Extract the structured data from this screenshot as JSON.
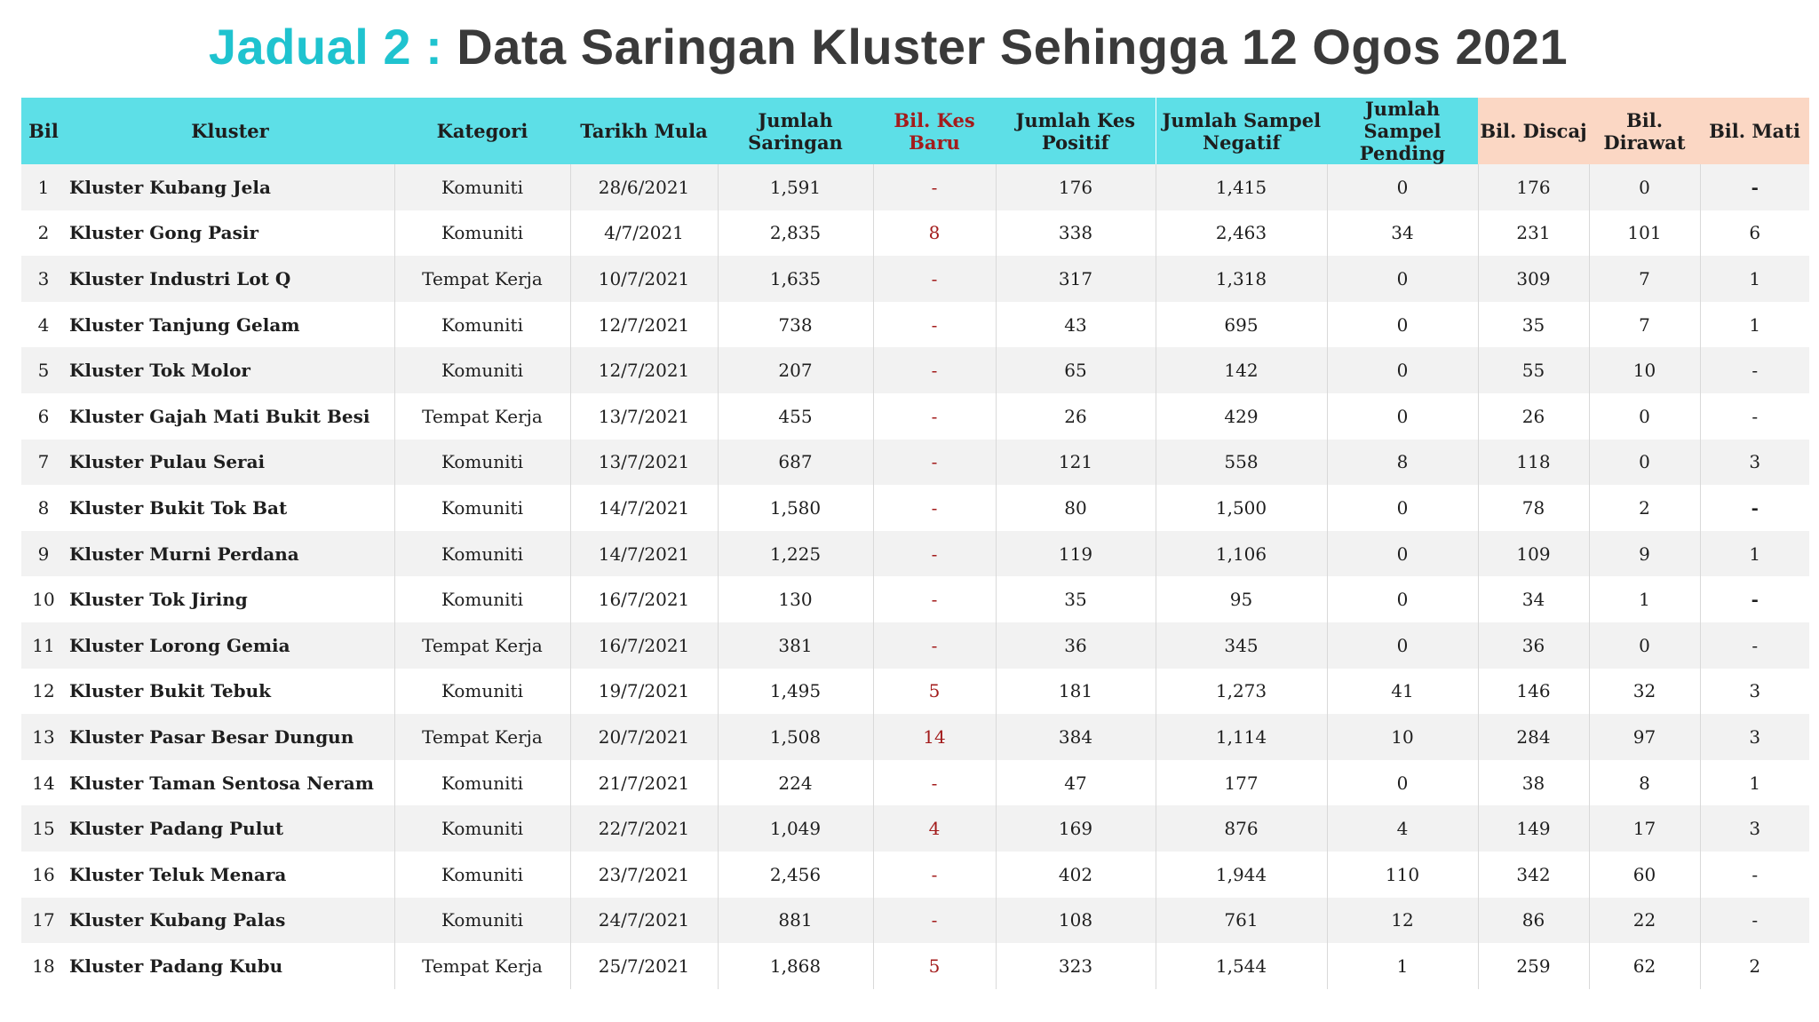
{
  "title": {
    "prefix": "Jadual 2 :",
    "main": "Data Saringan Kluster Sehingga 12 Ogos 2021"
  },
  "colors": {
    "header_cyan": "#5ddfe7",
    "header_peach": "#fbd7c4",
    "accent_red": "#a31c1c",
    "title_cyan": "#1fc3cf"
  },
  "headers": {
    "bil": "Bil",
    "kluster": "Kluster",
    "kategori": "Kategori",
    "tarikh": "Tarikh Mula",
    "saringan": "Jumlah Saringan",
    "kes_baru": "Bil. Kes Baru",
    "kes_positif": "Jumlah Kes Positif",
    "negatif": "Jumlah Sampel Negatif",
    "pending": "Jumlah Sampel Pending",
    "discaj": "Bil. Discaj",
    "dirawat": "Bil. Dirawat",
    "mati": "Bil. Mati"
  },
  "rows": [
    {
      "bil": "1",
      "kluster": "Kluster Kubang Jela",
      "kategori": "Komuniti",
      "tarikh": "28/6/2021",
      "saringan": "1,591",
      "kes_baru": "-",
      "kes_positif": "176",
      "negatif": "1,415",
      "pending": "0",
      "discaj": "176",
      "dirawat": "0",
      "mati": "-"
    },
    {
      "bil": "2",
      "kluster": "Kluster Gong Pasir",
      "kategori": "Komuniti",
      "tarikh": "4/7/2021",
      "saringan": "2,835",
      "kes_baru": "8",
      "kes_positif": "338",
      "negatif": "2,463",
      "pending": "34",
      "discaj": "231",
      "dirawat": "101",
      "mati": "6"
    },
    {
      "bil": "3",
      "kluster": "Kluster Industri Lot Q",
      "kategori": "Tempat Kerja",
      "tarikh": "10/7/2021",
      "saringan": "1,635",
      "kes_baru": "-",
      "kes_positif": "317",
      "negatif": "1,318",
      "pending": "0",
      "discaj": "309",
      "dirawat": "7",
      "mati": "1"
    },
    {
      "bil": "4",
      "kluster": "Kluster Tanjung Gelam",
      "kategori": "Komuniti",
      "tarikh": "12/7/2021",
      "saringan": "738",
      "kes_baru": "-",
      "kes_positif": "43",
      "negatif": "695",
      "pending": "0",
      "discaj": "35",
      "dirawat": "7",
      "mati": "1"
    },
    {
      "bil": "5",
      "kluster": "Kluster Tok Molor",
      "kategori": "Komuniti",
      "tarikh": "12/7/2021",
      "saringan": "207",
      "kes_baru": "-",
      "kes_positif": "65",
      "negatif": "142",
      "pending": "0",
      "discaj": "55",
      "dirawat": "10",
      "mati": "-"
    },
    {
      "bil": "6",
      "kluster": "Kluster Gajah Mati Bukit Besi",
      "kategori": "Tempat Kerja",
      "tarikh": "13/7/2021",
      "saringan": "455",
      "kes_baru": "-",
      "kes_positif": "26",
      "negatif": "429",
      "pending": "0",
      "discaj": "26",
      "dirawat": "0",
      "mati": "-"
    },
    {
      "bil": "7",
      "kluster": "Kluster Pulau Serai",
      "kategori": "Komuniti",
      "tarikh": "13/7/2021",
      "saringan": "687",
      "kes_baru": "-",
      "kes_positif": "121",
      "negatif": "558",
      "pending": "8",
      "discaj": "118",
      "dirawat": "0",
      "mati": "3"
    },
    {
      "bil": "8",
      "kluster": "Kluster Bukit Tok Bat",
      "kategori": "Komuniti",
      "tarikh": "14/7/2021",
      "saringan": "1,580",
      "kes_baru": "-",
      "kes_positif": "80",
      "negatif": "1,500",
      "pending": "0",
      "discaj": "78",
      "dirawat": "2",
      "mati": "-"
    },
    {
      "bil": "9",
      "kluster": "Kluster Murni Perdana",
      "kategori": "Komuniti",
      "tarikh": "14/7/2021",
      "saringan": "1,225",
      "kes_baru": "-",
      "kes_positif": "119",
      "negatif": "1,106",
      "pending": "0",
      "discaj": "109",
      "dirawat": "9",
      "mati": "1"
    },
    {
      "bil": "10",
      "kluster": "Kluster Tok Jiring",
      "kategori": "Komuniti",
      "tarikh": "16/7/2021",
      "saringan": "130",
      "kes_baru": "-",
      "kes_positif": "35",
      "negatif": "95",
      "pending": "0",
      "discaj": "34",
      "dirawat": "1",
      "mati": "-"
    },
    {
      "bil": "11",
      "kluster": "Kluster Lorong Gemia",
      "kategori": "Tempat Kerja",
      "tarikh": "16/7/2021",
      "saringan": "381",
      "kes_baru": "-",
      "kes_positif": "36",
      "negatif": "345",
      "pending": "0",
      "discaj": "36",
      "dirawat": "0",
      "mati": "-"
    },
    {
      "bil": "12",
      "kluster": "Kluster Bukit Tebuk",
      "kategori": "Komuniti",
      "tarikh": "19/7/2021",
      "saringan": "1,495",
      "kes_baru": "5",
      "kes_positif": "181",
      "negatif": "1,273",
      "pending": "41",
      "discaj": "146",
      "dirawat": "32",
      "mati": "3"
    },
    {
      "bil": "13",
      "kluster": "Kluster Pasar Besar Dungun",
      "kategori": "Tempat Kerja",
      "tarikh": "20/7/2021",
      "saringan": "1,508",
      "kes_baru": "14",
      "kes_positif": "384",
      "negatif": "1,114",
      "pending": "10",
      "discaj": "284",
      "dirawat": "97",
      "mati": "3"
    },
    {
      "bil": "14",
      "kluster": "Kluster Taman Sentosa Neram",
      "kategori": "Komuniti",
      "tarikh": "21/7/2021",
      "saringan": "224",
      "kes_baru": "-",
      "kes_positif": "47",
      "negatif": "177",
      "pending": "0",
      "discaj": "38",
      "dirawat": "8",
      "mati": "1"
    },
    {
      "bil": "15",
      "kluster": "Kluster Padang Pulut",
      "kategori": "Komuniti",
      "tarikh": "22/7/2021",
      "saringan": "1,049",
      "kes_baru": "4",
      "kes_positif": "169",
      "negatif": "876",
      "pending": "4",
      "discaj": "149",
      "dirawat": "17",
      "mati": "3"
    },
    {
      "bil": "16",
      "kluster": "Kluster Teluk Menara",
      "kategori": "Komuniti",
      "tarikh": "23/7/2021",
      "saringan": "2,456",
      "kes_baru": "-",
      "kes_positif": "402",
      "negatif": "1,944",
      "pending": "110",
      "discaj": "342",
      "dirawat": "60",
      "mati": "-"
    },
    {
      "bil": "17",
      "kluster": "Kluster Kubang Palas",
      "kategori": "Komuniti",
      "tarikh": "24/7/2021",
      "saringan": "881",
      "kes_baru": "-",
      "kes_positif": "108",
      "negatif": "761",
      "pending": "12",
      "discaj": "86",
      "dirawat": "22",
      "mati": "-"
    },
    {
      "bil": "18",
      "kluster": "Kluster Padang Kubu",
      "kategori": "Tempat Kerja",
      "tarikh": "25/7/2021",
      "saringan": "1,868",
      "kes_baru": "5",
      "kes_positif": "323",
      "negatif": "1,544",
      "pending": "1",
      "discaj": "259",
      "dirawat": "62",
      "mati": "2"
    }
  ]
}
